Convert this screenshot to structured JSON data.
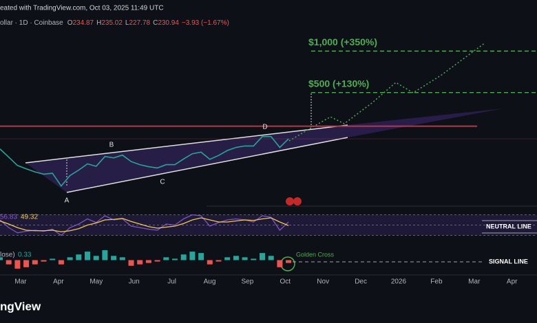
{
  "chart_data": {
    "type": "line",
    "credit": "eated with TradingView.com, Oct 03, 2025 11:49 UTC",
    "symbol": "ollar · 1D · Coinbase",
    "ohlc": [
      {
        "label": "O",
        "value": 234.87
      },
      {
        "label": "H",
        "value": 235.02
      },
      {
        "label": "L",
        "value": 227.78
      },
      {
        "label": "C",
        "value": 230.94
      }
    ],
    "change": "−3.93 (−1.67%)",
    "log_scale": true,
    "ylim": [
      75,
      1400
    ],
    "series": [
      {
        "color": "#26a69a",
        "values": [
          195,
          170,
          148,
          140,
          133,
          128,
          130,
          105,
          125,
          137,
          152,
          146,
          172,
          168,
          176,
          158,
          150,
          145,
          142,
          150,
          150,
          165,
          180,
          185,
          164,
          175,
          190,
          200,
          205,
          205,
          240,
          240,
          200,
          231
        ]
      }
    ],
    "levels": [
      {
        "value": 1000,
        "label": "$1,000 (+350%)"
      },
      {
        "value": 500,
        "label": "$500 (+130%)"
      }
    ],
    "level_color": "#4caf50",
    "resistance": 285,
    "wave_labels": [
      "A",
      "B",
      "C",
      "D"
    ],
    "x_labels": [
      "Mar",
      "Apr",
      "May",
      "Jun",
      "Jul",
      "Aug",
      "Sep",
      "Oct",
      "Nov",
      "Dec",
      "2026",
      "Feb",
      "Mar",
      "Apr"
    ],
    "rsi": {
      "value": 56.83,
      "ma_value": 49.32,
      "ylim": [
        20,
        80
      ],
      "bands": [
        70,
        50,
        30
      ],
      "color": "#7e57c2",
      "ma_color": "#f2c94c",
      "values": [
        60,
        45,
        35,
        38,
        40,
        38,
        42,
        30,
        45,
        52,
        62,
        55,
        68,
        60,
        62,
        48,
        45,
        42,
        40,
        52,
        50,
        62,
        70,
        68,
        48,
        55,
        60,
        62,
        60,
        56,
        68,
        65,
        40,
        56
      ],
      "ma_values": [
        58,
        52,
        45,
        40,
        39,
        39,
        40,
        37,
        39,
        43,
        50,
        54,
        60,
        61,
        63,
        57,
        52,
        47,
        44,
        46,
        48,
        53,
        60,
        64,
        60,
        56,
        56,
        58,
        60,
        59,
        62,
        64,
        56,
        49
      ],
      "annotation": "NEUTRAL LINE"
    },
    "macd": {
      "prefix": "lose)",
      "value": 0.33,
      "ylim": [
        -8,
        8
      ],
      "histogram": [
        2,
        -3,
        -6,
        -5,
        -3,
        -1,
        1,
        -3,
        2,
        4,
        6,
        3,
        7,
        3,
        2,
        -4,
        -3,
        -2,
        -1,
        2,
        1,
        4,
        6,
        5,
        -3,
        -1,
        2,
        3,
        2,
        1,
        5,
        3,
        -5,
        -2
      ],
      "annotation": "SIGNAL LINE",
      "callout": "Golden Cross"
    },
    "brand": "ngView"
  }
}
